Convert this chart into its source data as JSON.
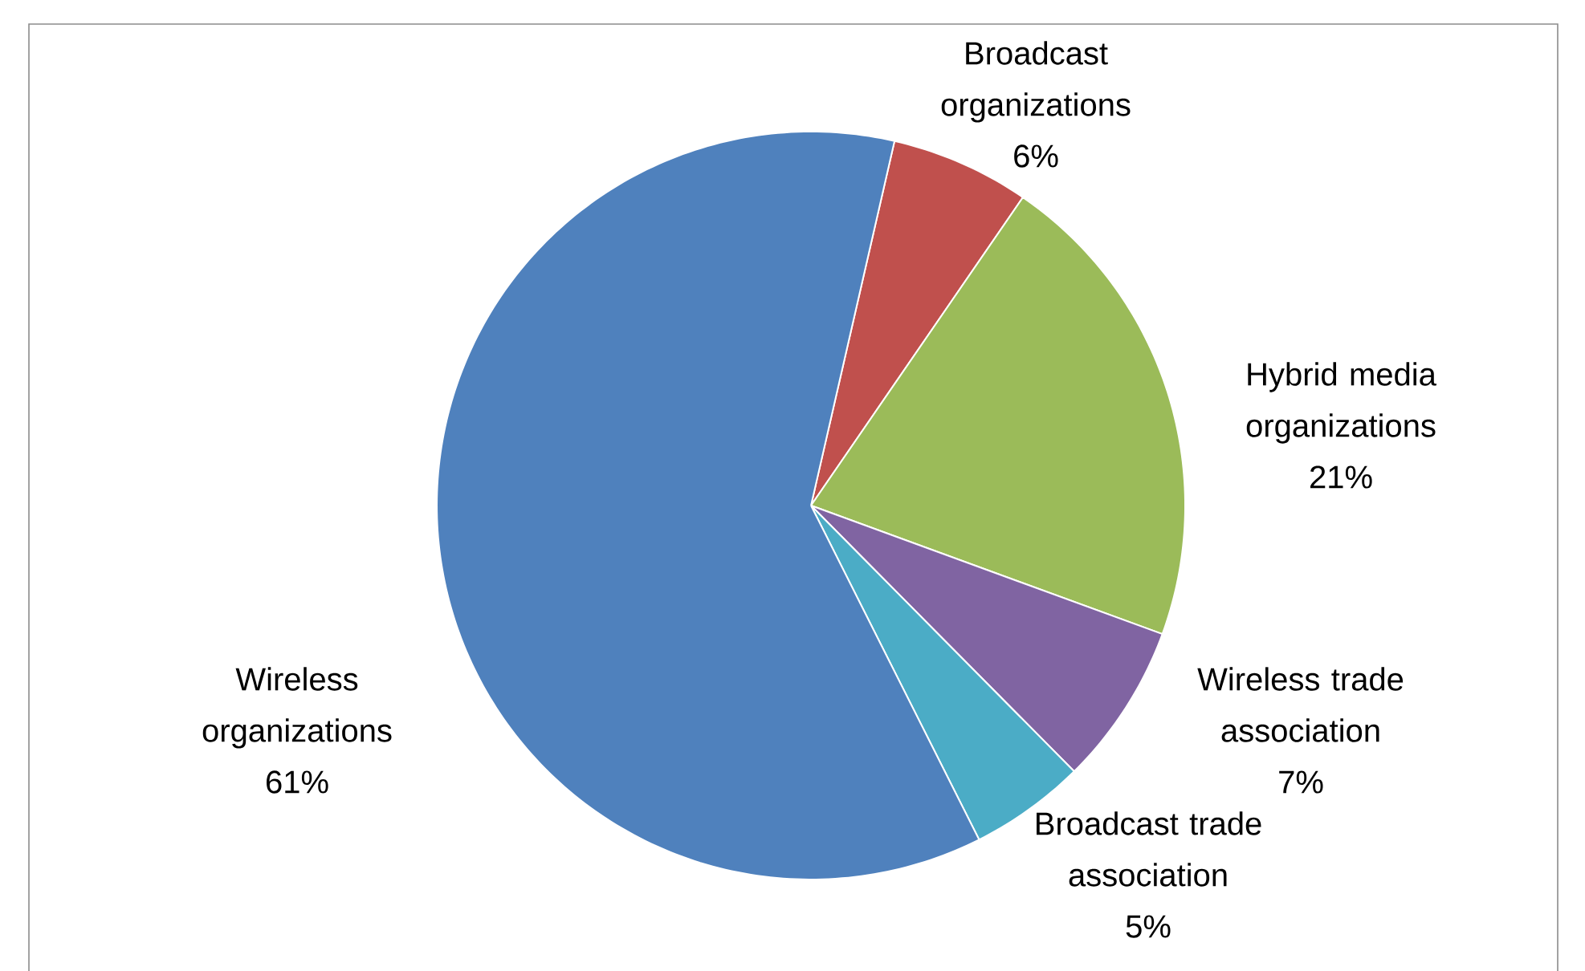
{
  "chart_data": {
    "type": "pie",
    "categories": [
      "Broadcast organizations",
      "Hybrid media organizations",
      "Wireless trade association",
      "Broadcast trade association",
      "Wireless organizations"
    ],
    "values": [
      6,
      21,
      7,
      5,
      61
    ],
    "value_labels": [
      "6%",
      "21%",
      "7%",
      "5%",
      "61%"
    ],
    "data_labels": true,
    "colors": [
      "#c0504d",
      "#9bbb59",
      "#8064a2",
      "#4bacc6",
      "#4f81bd"
    ]
  }
}
